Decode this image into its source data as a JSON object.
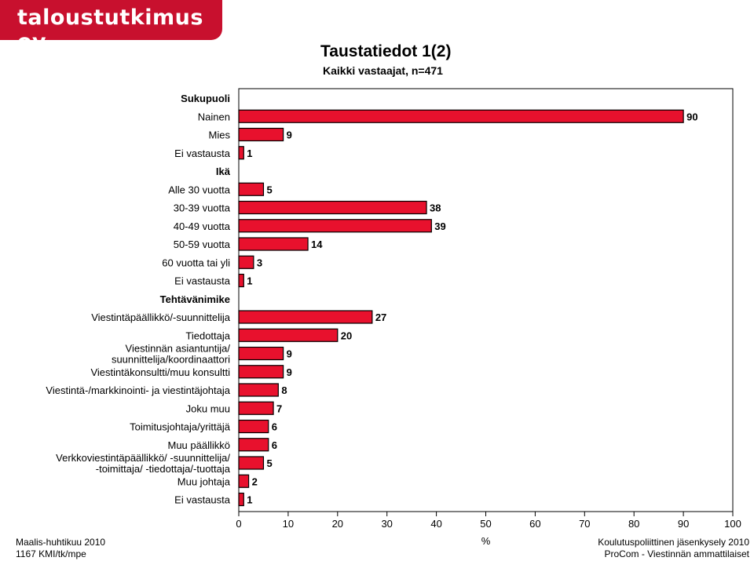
{
  "brand": {
    "name": "taloustutkimus oy",
    "color": "#c8102e"
  },
  "header": {
    "title": "Taustatiedot  1(2)",
    "subtitle": "Kaikki vastaajat, n=471"
  },
  "footer": {
    "left_line1": "Maalis-huhtikuu 2010",
    "left_line2": "1167 KMI/tk/mpe",
    "right_line1": "Koulutuspoliittinen jäsenkysely 2010",
    "right_line2": "ProCom - Viestinnän ammattilaiset"
  },
  "chart_data": {
    "type": "bar",
    "orientation": "horizontal",
    "xlabel": "%",
    "xlim": [
      0,
      100
    ],
    "xticks": [
      0,
      10,
      20,
      30,
      40,
      50,
      60,
      70,
      80,
      90,
      100
    ],
    "bar_color": "#e8112d",
    "rows": [
      {
        "label": [
          "Sukupuoli"
        ],
        "header": true
      },
      {
        "label": [
          "Nainen"
        ],
        "value": 90
      },
      {
        "label": [
          "Mies"
        ],
        "value": 9
      },
      {
        "label": [
          "Ei vastausta"
        ],
        "value": 1
      },
      {
        "label": [
          "Ikä"
        ],
        "header": true
      },
      {
        "label": [
          "Alle 30 vuotta"
        ],
        "value": 5
      },
      {
        "label": [
          "30-39 vuotta"
        ],
        "value": 38
      },
      {
        "label": [
          "40-49 vuotta"
        ],
        "value": 39
      },
      {
        "label": [
          "50-59 vuotta"
        ],
        "value": 14
      },
      {
        "label": [
          "60 vuotta tai yli"
        ],
        "value": 3
      },
      {
        "label": [
          "Ei vastausta"
        ],
        "value": 1
      },
      {
        "label": [
          "Tehtävänimike"
        ],
        "header": true
      },
      {
        "label": [
          "Viestintäpäällikkö/-suunnittelija"
        ],
        "value": 27
      },
      {
        "label": [
          "Tiedottaja"
        ],
        "value": 20
      },
      {
        "label": [
          "Viestinnän asiantuntija/",
          "suunnittelija/koordinaattori"
        ],
        "value": 9
      },
      {
        "label": [
          "Viestintäkonsultti/muu konsultti"
        ],
        "value": 9
      },
      {
        "label": [
          "Viestintä-/markkinointi- ja viestintäjohtaja"
        ],
        "value": 8
      },
      {
        "label": [
          "Joku muu"
        ],
        "value": 7
      },
      {
        "label": [
          "Toimitusjohtaja/yrittäjä"
        ],
        "value": 6
      },
      {
        "label": [
          "Muu päällikkö"
        ],
        "value": 6
      },
      {
        "label": [
          "Verkkoviestintäpäällikkö/ -suunnittelija/",
          "-toimittaja/ -tiedottaja/-tuottaja"
        ],
        "value": 5
      },
      {
        "label": [
          "Muu johtaja"
        ],
        "value": 2
      },
      {
        "label": [
          "Ei vastausta"
        ],
        "value": 1
      }
    ]
  }
}
